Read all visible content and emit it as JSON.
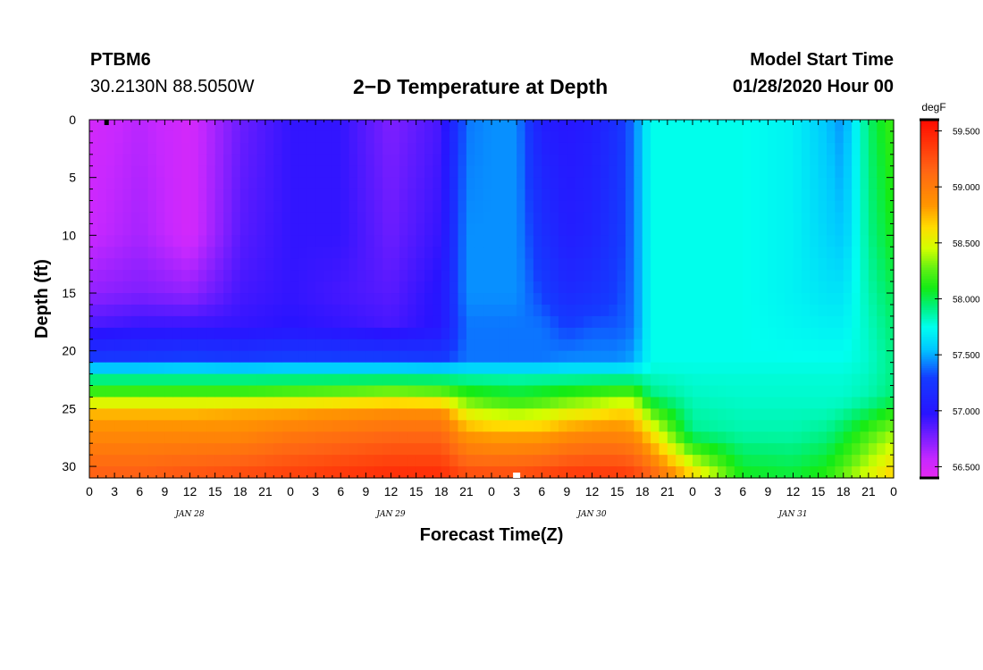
{
  "header": {
    "station": "PTBM6",
    "coords": "30.2130N 88.5050W",
    "title": "2−D Temperature at Depth",
    "start_label": "Model Start Time",
    "start_value": "01/28/2020 Hour 00"
  },
  "chart_data": {
    "type": "heatmap",
    "title": "2−D Temperature at Depth",
    "xlabel": "Forecast Time(Z)",
    "ylabel": "Depth (ft)",
    "x_unit": "hours from 01/28/2020 00Z",
    "xlim": [
      0,
      96
    ],
    "ylim": [
      31,
      0
    ],
    "x_tick_labels": [
      "0",
      "3",
      "6",
      "9",
      "12",
      "15",
      "18",
      "21",
      "0",
      "3",
      "6",
      "9",
      "12",
      "15",
      "18",
      "21",
      "0",
      "3",
      "6",
      "9",
      "12",
      "15",
      "18",
      "21",
      "0",
      "3",
      "6",
      "9",
      "12",
      "15",
      "18",
      "21",
      "0"
    ],
    "x_date_labels": [
      {
        "label": "JAN 28",
        "hour": 12
      },
      {
        "label": "JAN 29",
        "hour": 36
      },
      {
        "label": "JAN 30",
        "hour": 60
      },
      {
        "label": "JAN 31",
        "hour": 84
      }
    ],
    "y_tick_labels": [
      "0",
      "5",
      "10",
      "15",
      "20",
      "25",
      "30"
    ],
    "y_ticks": [
      0,
      5,
      10,
      15,
      20,
      25,
      30
    ],
    "colorbar": {
      "unit": "degF",
      "min": 56.4,
      "max": 59.6,
      "tick_labels": [
        "59.500",
        "59.000",
        "58.500",
        "58.000",
        "57.500",
        "57.000",
        "56.500"
      ],
      "ticks": [
        59.5,
        59.0,
        58.5,
        58.0,
        57.5,
        57.0,
        56.5
      ]
    },
    "temperature_profiles": [
      {
        "hour": 0,
        "depth": [
          0,
          10,
          15,
          18,
          21,
          22,
          24,
          25,
          27,
          31
        ],
        "temp": [
          56.5,
          56.55,
          56.7,
          56.9,
          57.3,
          57.8,
          58.3,
          58.7,
          58.9,
          59.2
        ]
      },
      {
        "hour": 6,
        "depth": [
          0,
          10,
          15,
          18,
          21,
          22,
          24,
          25,
          27,
          31
        ],
        "temp": [
          56.6,
          56.65,
          56.75,
          56.95,
          57.3,
          57.8,
          58.3,
          58.7,
          58.9,
          59.2
        ]
      },
      {
        "hour": 12,
        "depth": [
          0,
          10,
          15,
          18,
          21,
          22,
          24,
          25,
          27,
          31
        ],
        "temp": [
          56.5,
          56.5,
          56.7,
          56.95,
          57.35,
          57.8,
          58.3,
          58.7,
          58.9,
          59.25
        ]
      },
      {
        "hour": 18,
        "depth": [
          0,
          10,
          15,
          18,
          21,
          22,
          24,
          25,
          27,
          31
        ],
        "temp": [
          56.8,
          56.85,
          56.9,
          56.95,
          57.3,
          57.8,
          58.3,
          58.75,
          58.9,
          59.3
        ]
      },
      {
        "hour": 24,
        "depth": [
          0,
          10,
          15,
          18,
          21,
          22,
          24,
          25,
          27,
          31
        ],
        "temp": [
          56.95,
          56.95,
          56.95,
          56.98,
          57.35,
          57.8,
          58.35,
          58.75,
          59.0,
          59.35
        ]
      },
      {
        "hour": 30,
        "depth": [
          0,
          10,
          15,
          18,
          21,
          22,
          24,
          25,
          27,
          31
        ],
        "temp": [
          56.95,
          56.95,
          56.9,
          56.95,
          57.35,
          57.8,
          58.4,
          58.8,
          59.05,
          59.4
        ]
      },
      {
        "hour": 36,
        "depth": [
          0,
          10,
          15,
          18,
          21,
          22,
          24,
          25,
          27,
          31
        ],
        "temp": [
          56.75,
          56.8,
          56.85,
          56.9,
          57.35,
          57.8,
          58.45,
          58.85,
          59.1,
          59.45
        ]
      },
      {
        "hour": 42,
        "depth": [
          0,
          10,
          15,
          18,
          21,
          22,
          24,
          25,
          27,
          31
        ],
        "temp": [
          56.9,
          56.95,
          57.0,
          57.0,
          57.3,
          57.8,
          58.4,
          58.85,
          59.1,
          59.45
        ]
      },
      {
        "hour": 45,
        "depth": [
          0,
          10,
          15,
          18,
          21,
          22,
          24,
          25,
          27,
          31
        ],
        "temp": [
          57.4,
          57.45,
          57.45,
          57.4,
          57.4,
          57.8,
          58.2,
          58.45,
          58.8,
          59.3
        ]
      },
      {
        "hour": 48,
        "depth": [
          0,
          10,
          15,
          18,
          21,
          22,
          24,
          25,
          27,
          31
        ],
        "temp": [
          57.45,
          57.45,
          57.45,
          57.4,
          57.4,
          57.8,
          58.15,
          58.35,
          58.75,
          59.3
        ]
      },
      {
        "hour": 51,
        "depth": [
          0,
          10,
          15,
          18,
          21,
          22,
          24,
          25,
          27,
          31
        ],
        "temp": [
          57.45,
          57.45,
          57.45,
          57.4,
          57.4,
          57.8,
          58.1,
          58.3,
          58.75,
          59.3
        ]
      },
      {
        "hour": 54,
        "depth": [
          0,
          10,
          15,
          18,
          21,
          22,
          24,
          25,
          27,
          31
        ],
        "temp": [
          57.05,
          57.2,
          57.3,
          57.4,
          57.4,
          57.8,
          58.15,
          58.35,
          58.75,
          59.35
        ]
      },
      {
        "hour": 57,
        "depth": [
          0,
          10,
          15,
          18,
          21,
          22,
          24,
          25,
          27,
          31
        ],
        "temp": [
          57.0,
          57.05,
          57.15,
          57.3,
          57.45,
          57.8,
          58.2,
          58.45,
          58.85,
          59.4
        ]
      },
      {
        "hour": 60,
        "depth": [
          0,
          10,
          15,
          18,
          21,
          22,
          24,
          25,
          27,
          31
        ],
        "temp": [
          57.05,
          57.1,
          57.2,
          57.35,
          57.45,
          57.8,
          58.25,
          58.5,
          58.9,
          59.4
        ]
      },
      {
        "hour": 63,
        "depth": [
          0,
          10,
          15,
          18,
          21,
          22,
          24,
          25,
          27,
          31
        ],
        "temp": [
          57.2,
          57.25,
          57.3,
          57.35,
          57.45,
          57.8,
          58.3,
          58.6,
          58.9,
          59.4
        ]
      },
      {
        "hour": 65,
        "depth": [
          0,
          10,
          15,
          18,
          21,
          22,
          24,
          25,
          27,
          31
        ],
        "temp": [
          57.4,
          57.4,
          57.4,
          57.4,
          57.5,
          57.8,
          58.3,
          58.6,
          58.85,
          59.35
        ]
      },
      {
        "hour": 67,
        "depth": [
          0,
          10,
          15,
          18,
          21,
          22,
          24,
          25,
          27,
          31
        ],
        "temp": [
          57.75,
          57.75,
          57.75,
          57.75,
          57.75,
          57.8,
          57.95,
          58.2,
          58.6,
          59.2
        ]
      },
      {
        "hour": 72,
        "depth": [
          0,
          10,
          15,
          18,
          21,
          22,
          24,
          25,
          27,
          31
        ],
        "temp": [
          57.75,
          57.75,
          57.75,
          57.75,
          57.75,
          57.78,
          57.82,
          57.85,
          57.9,
          58.7
        ]
      },
      {
        "hour": 78,
        "depth": [
          0,
          10,
          15,
          18,
          21,
          22,
          24,
          25,
          27,
          31
        ],
        "temp": [
          57.75,
          57.75,
          57.75,
          57.75,
          57.75,
          57.78,
          57.8,
          57.82,
          57.85,
          58.1
        ]
      },
      {
        "hour": 84,
        "depth": [
          0,
          10,
          15,
          18,
          21,
          22,
          24,
          25,
          27,
          31
        ],
        "temp": [
          57.7,
          57.7,
          57.7,
          57.72,
          57.75,
          57.78,
          57.8,
          57.82,
          57.85,
          58.05
        ]
      },
      {
        "hour": 88,
        "depth": [
          0,
          10,
          15,
          18,
          21,
          22,
          24,
          25,
          27,
          31
        ],
        "temp": [
          57.55,
          57.6,
          57.65,
          57.7,
          57.75,
          57.78,
          57.8,
          57.82,
          57.9,
          58.15
        ]
      },
      {
        "hour": 90,
        "depth": [
          0,
          10,
          15,
          18,
          21,
          22,
          24,
          25,
          27,
          31
        ],
        "temp": [
          57.45,
          57.55,
          57.65,
          57.7,
          57.75,
          57.78,
          57.8,
          57.85,
          58.0,
          58.3
        ]
      },
      {
        "hour": 93,
        "depth": [
          0,
          10,
          15,
          18,
          21,
          22,
          24,
          25,
          27,
          31
        ],
        "temp": [
          57.95,
          57.9,
          57.85,
          57.82,
          57.8,
          57.82,
          57.85,
          57.95,
          58.2,
          58.5
        ]
      },
      {
        "hour": 96,
        "depth": [
          0,
          10,
          15,
          18,
          21,
          22,
          24,
          25,
          27,
          31
        ],
        "temp": [
          58.2,
          58.1,
          58.0,
          57.95,
          57.92,
          57.92,
          57.95,
          58.1,
          58.35,
          58.7
        ]
      }
    ]
  }
}
